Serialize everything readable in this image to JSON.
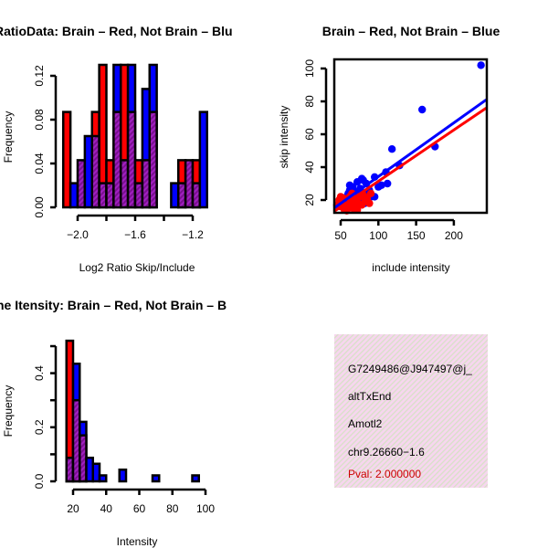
{
  "colors": {
    "brain": "#ff0000",
    "not_brain": "#0000ff",
    "overlap": "#9a1ab0",
    "panel": "#f5d8ee",
    "pval": "#cc0000"
  },
  "chart_data": [
    {
      "type": "bar",
      "title": "RatioData: Brain – Red, Not Brain – Blu",
      "xlabel": "Log2 Ratio Skip/Include",
      "ylabel": "Frequency",
      "xlim": [
        -2.1,
        -1.1
      ],
      "ylim": [
        0,
        0.13
      ],
      "xticks": [
        -2.0,
        -1.8,
        -1.6,
        -1.4,
        -1.2
      ],
      "xtick_labels": [
        "−2.0",
        "",
        "−1.6",
        "",
        "−1.2"
      ],
      "yticks": [
        0,
        0.04,
        0.08,
        0.12
      ],
      "ytick_labels": [
        "0.00",
        "0.04",
        "0.08",
        "0.12"
      ],
      "bin_start": -2.1,
      "bin_width": 0.05,
      "series": [
        {
          "name": "Brain",
          "color": "red",
          "values": [
            0.087,
            0,
            0.043,
            0,
            0.087,
            0.13,
            0.043,
            0.087,
            0.13,
            0.087,
            0.043,
            0.043,
            0.087,
            0,
            0,
            0,
            0.043,
            0.043,
            0.043,
            0
          ]
        },
        {
          "name": "Not Brain",
          "color": "blue",
          "values": [
            0,
            0.022,
            0.043,
            0.065,
            0.065,
            0.022,
            0.022,
            0.13,
            0.043,
            0.13,
            0.022,
            0.108,
            0.13,
            0,
            0,
            0.022,
            0.022,
            0.043,
            0.022,
            0.087
          ]
        }
      ]
    },
    {
      "type": "scatter",
      "title": "Brain – Red, Not Brain – Blue",
      "xlabel": "include intensity",
      "ylabel": "skip intensity",
      "xlim": [
        41,
        243
      ],
      "ylim": [
        13,
        106
      ],
      "xticks": [
        50,
        100,
        150,
        200
      ],
      "yticks": [
        20,
        40,
        60,
        80,
        100
      ],
      "series": [
        {
          "name": "Not Brain",
          "color": "blue",
          "points": [
            [
              236,
              102
            ],
            [
              158,
              75
            ],
            [
              118,
              51
            ],
            [
              175,
              52.5
            ],
            [
              128,
              41
            ],
            [
              110,
              37
            ],
            [
              112,
              30
            ],
            [
              95,
              34
            ],
            [
              100,
              28
            ],
            [
              78,
              33
            ],
            [
              80,
              32
            ],
            [
              72,
              31
            ],
            [
              66,
              28
            ],
            [
              62,
              26
            ],
            [
              60,
              24
            ],
            [
              70,
              22
            ],
            [
              75,
              24
            ],
            [
              85,
              25
            ],
            [
              90,
              22
            ],
            [
              95,
              22
            ],
            [
              68,
              20
            ],
            [
              58,
              22
            ],
            [
              64,
              18
            ],
            [
              80,
              20
            ],
            [
              88,
              26
            ],
            [
              55,
              20
            ],
            [
              62,
              29
            ],
            [
              104,
              29
            ],
            [
              84,
              30
            ],
            [
              76,
              27
            ],
            [
              70,
              25
            ],
            [
              60,
              17
            ],
            [
              82,
              18
            ]
          ],
          "fit": [
            [
              41,
              15
            ],
            [
              243,
              81
            ]
          ]
        },
        {
          "name": "Brain",
          "color": "red",
          "points": [
            [
              48,
              20
            ],
            [
              50,
              16
            ],
            [
              52,
              18
            ],
            [
              55,
              14
            ],
            [
              57,
              15
            ],
            [
              60,
              17
            ],
            [
              63,
              19
            ],
            [
              66,
              15
            ],
            [
              68,
              20
            ],
            [
              70,
              16
            ],
            [
              73,
              18
            ],
            [
              75,
              22
            ],
            [
              78,
              17
            ],
            [
              82,
              19
            ],
            [
              85,
              21
            ],
            [
              88,
              18
            ],
            [
              50,
              22
            ],
            [
              54,
              21
            ],
            [
              58,
              13.5
            ],
            [
              62,
              22
            ],
            [
              72,
              14
            ],
            [
              80,
              23
            ],
            [
              90,
              24
            ],
            [
              65,
              24
            ],
            [
              45,
              17
            ]
          ],
          "fit": [
            [
              41,
              13
            ],
            [
              243,
              76
            ]
          ]
        }
      ]
    },
    {
      "type": "bar",
      "title": "ne Itensity: Brain – Red, Not Brain – B",
      "xlabel": "Intensity",
      "ylabel": "Frequency",
      "xlim": [
        16,
        100
      ],
      "ylim": [
        0,
        0.52
      ],
      "xticks": [
        20,
        40,
        60,
        80,
        100
      ],
      "yticks": [
        0,
        0.1,
        0.2,
        0.3,
        0.4,
        0.5
      ],
      "ytick_labels": [
        "0.0",
        "",
        "0.2",
        "",
        "0.4",
        ""
      ],
      "bin_start": 16,
      "bin_width": 4,
      "series": [
        {
          "name": "Brain",
          "color": "red",
          "values": [
            0.52,
            0.3,
            0.17,
            0,
            0,
            0,
            0,
            0,
            0,
            0,
            0,
            0,
            0,
            0,
            0,
            0,
            0,
            0,
            0,
            0
          ]
        },
        {
          "name": "Not Brain",
          "color": "blue",
          "values": [
            0.087,
            0.435,
            0.22,
            0.087,
            0.065,
            0.022,
            0,
            0,
            0.043,
            0,
            0,
            0,
            0,
            0.022,
            0,
            0,
            0,
            0,
            0,
            0.022
          ]
        }
      ]
    }
  ],
  "info_panel": {
    "id": "G7249486@J947497@j_",
    "event_type": "altTxEnd",
    "gene": "Amotl2",
    "location": "chr9.26660−1.6",
    "pval": "Pval: 2.000000"
  }
}
